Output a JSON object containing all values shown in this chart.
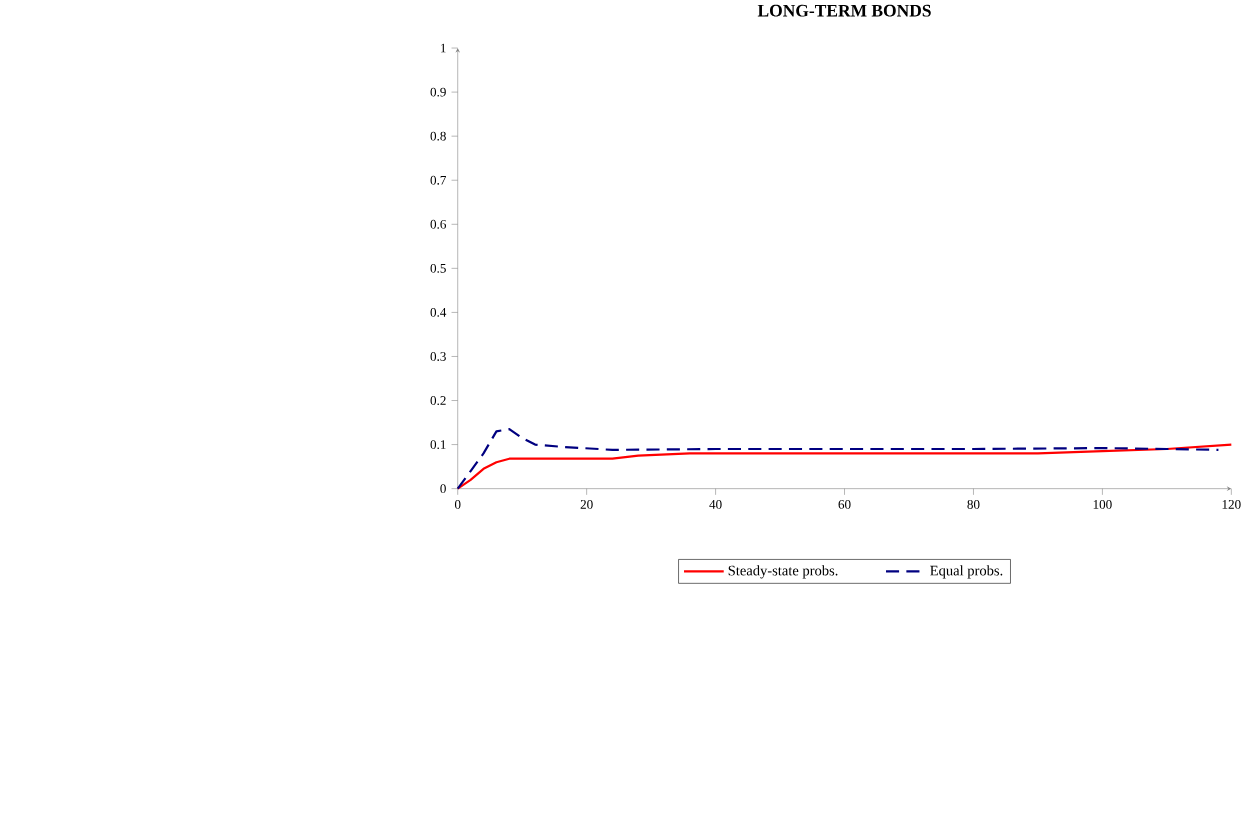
{
  "chart_data": {
    "type": "line",
    "title": "LONG-TERM BONDS",
    "series": [
      {
        "name": "Steady-state probs.",
        "color": "#ff0000",
        "line_style": "solid",
        "x": [
          0,
          2,
          4,
          6,
          8,
          24,
          28,
          36,
          90,
          100,
          110,
          120
        ],
        "values": [
          0,
          0.02,
          0.045,
          0.06,
          0.068,
          0.068,
          0.075,
          0.08,
          0.08,
          0.085,
          0.09,
          0.1
        ]
      },
      {
        "name": "Equal probs.",
        "color": "#000080",
        "line_style": "dashed",
        "x": [
          0,
          2,
          4,
          6,
          8,
          10,
          12,
          16,
          24,
          40,
          80,
          100,
          110,
          118
        ],
        "values": [
          0,
          0.04,
          0.08,
          0.13,
          0.135,
          0.115,
          0.1,
          0.095,
          0.088,
          0.09,
          0.09,
          0.092,
          0.09,
          0.088
        ]
      }
    ],
    "xlim": [
      0,
      120
    ],
    "xticks": [
      0,
      20,
      40,
      60,
      80,
      100,
      120
    ],
    "ylim": [
      0,
      1
    ],
    "yticks": [
      0,
      0.1,
      0.2,
      0.3,
      0.4,
      0.5,
      0.6,
      0.7,
      0.8,
      0.9,
      1
    ],
    "grid": false,
    "legend": "bottom",
    "marker": "none"
  }
}
